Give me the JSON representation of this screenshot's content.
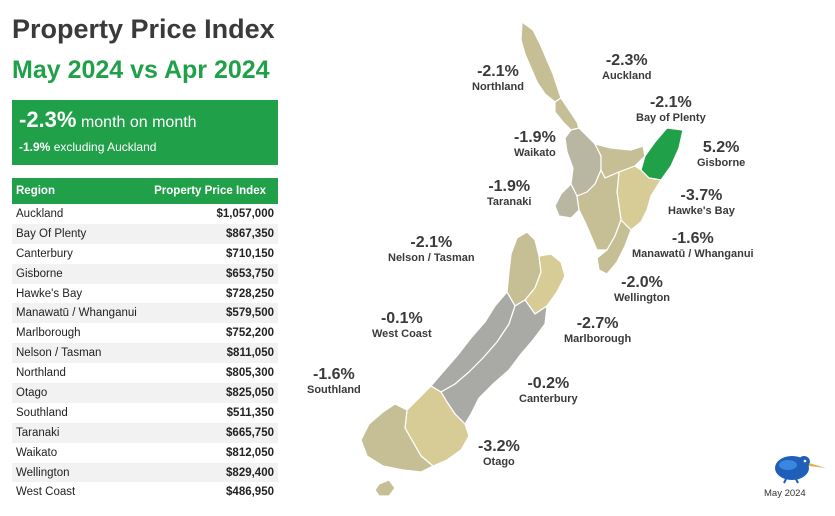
{
  "header": {
    "title": "Property Price Index",
    "subtitle": "May 2024 vs Apr 2024"
  },
  "summary": {
    "headline_value": "-2.3%",
    "headline_text": "month on month",
    "sub_value": "-1.9%",
    "sub_text": "excluding Auckland"
  },
  "table": {
    "col_region": "Region",
    "col_price": "Property Price Index",
    "rows": [
      {
        "region": "Auckland",
        "price": "$1,057,000"
      },
      {
        "region": "Bay Of Plenty",
        "price": "$867,350"
      },
      {
        "region": "Canterbury",
        "price": "$710,150"
      },
      {
        "region": "Gisborne",
        "price": "$653,750"
      },
      {
        "region": "Hawke's Bay",
        "price": "$728,250"
      },
      {
        "region": "Manawatū / Whanganui",
        "price": "$579,500"
      },
      {
        "region": "Marlborough",
        "price": "$752,200"
      },
      {
        "region": "Nelson / Tasman",
        "price": "$811,050"
      },
      {
        "region": "Northland",
        "price": "$805,300"
      },
      {
        "region": "Otago",
        "price": "$825,050"
      },
      {
        "region": "Southland",
        "price": "$511,350"
      },
      {
        "region": "Taranaki",
        "price": "$665,750"
      },
      {
        "region": "Waikato",
        "price": "$812,050"
      },
      {
        "region": "Wellington",
        "price": "$829,400"
      },
      {
        "region": "West Coast",
        "price": "$486,950"
      }
    ]
  },
  "map": {
    "colors": {
      "increase": "#21a04a",
      "light_tan": "#d8cc96",
      "tan": "#c6bf96",
      "grey_tan": "#b9b6a2",
      "grey": "#a9a9a6"
    },
    "labels": {
      "northland": {
        "pct": "-2.1%",
        "name": "Northland"
      },
      "auckland": {
        "pct": "-2.3%",
        "name": "Auckland"
      },
      "bay_of_plenty": {
        "pct": "-2.1%",
        "name": "Bay of Plenty"
      },
      "waikato": {
        "pct": "-1.9%",
        "name": "Waikato"
      },
      "gisborne": {
        "pct": "5.2%",
        "name": "Gisborne"
      },
      "taranaki": {
        "pct": "-1.9%",
        "name": "Taranaki"
      },
      "hawkes_bay": {
        "pct": "-3.7%",
        "name": "Hawke's Bay"
      },
      "nelson_tasman": {
        "pct": "-2.1%",
        "name": "Nelson / Tasman"
      },
      "manawatu": {
        "pct": "-1.6%",
        "name": "Manawatū / Whanganui"
      },
      "wellington": {
        "pct": "-2.0%",
        "name": "Wellington"
      },
      "west_coast": {
        "pct": "-0.1%",
        "name": "West Coast"
      },
      "marlborough": {
        "pct": "-2.7%",
        "name": "Marlborough"
      },
      "southland": {
        "pct": "-1.6%",
        "name": "Southland"
      },
      "canterbury": {
        "pct": "-0.2%",
        "name": "Canterbury"
      },
      "otago": {
        "pct": "-3.2%",
        "name": "Otago"
      }
    }
  },
  "footer": {
    "date": "May 2024",
    "logo_icon": "kiwi-bird-logo-icon"
  }
}
